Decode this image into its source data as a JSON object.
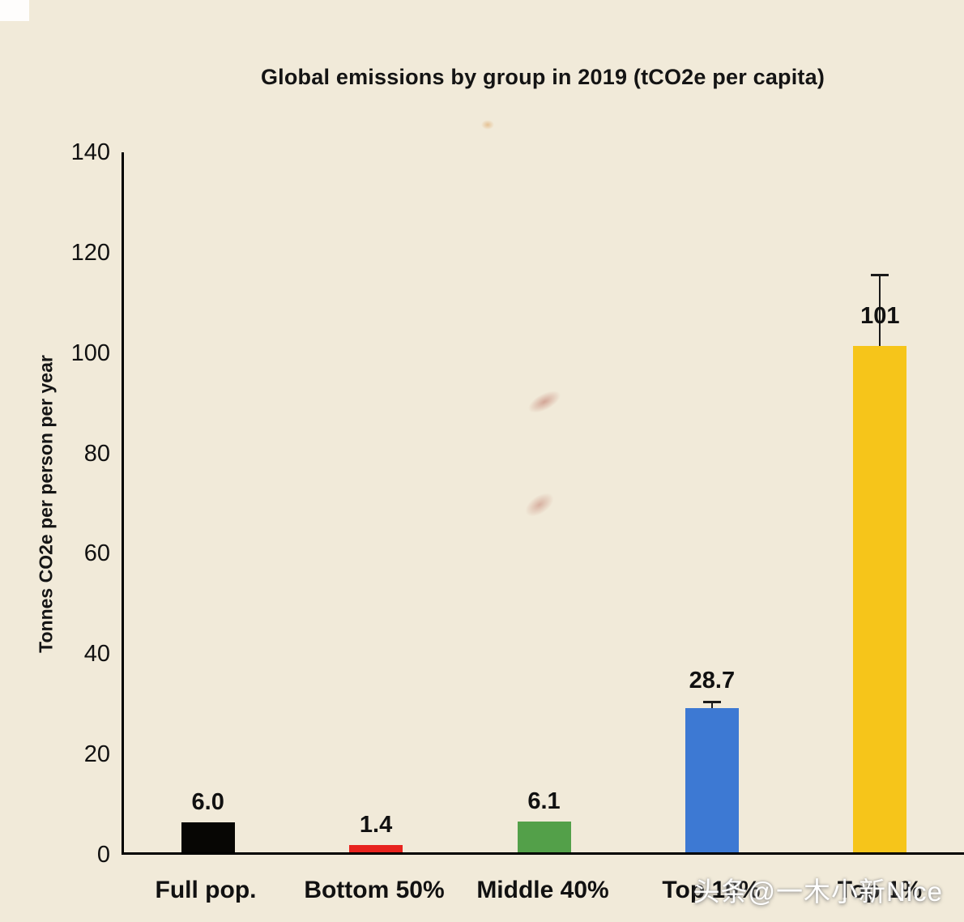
{
  "page": {
    "background_color": "#f1ead9"
  },
  "watermark": "头条@一木小新Nice",
  "chart_data": {
    "type": "bar",
    "title": "Global emissions by group in 2019 (tCO2e per capita)",
    "xlabel": "",
    "ylabel": "Tonnes CO2e per person per year",
    "ylim": [
      0,
      140
    ],
    "yticks": [
      0,
      20,
      40,
      60,
      80,
      100,
      120,
      140
    ],
    "grid": false,
    "legend": false,
    "categories": [
      "Full pop.",
      "Bottom 50%",
      "Middle 40%",
      "Top 10%",
      "Top 1%"
    ],
    "values": [
      6.0,
      1.4,
      6.1,
      28.7,
      101
    ],
    "value_labels": [
      "6.0",
      "1.4",
      "6.1",
      "28.7",
      "101"
    ],
    "bar_colors": [
      "#070604",
      "#e8231e",
      "#53a049",
      "#3d79d3",
      "#f6c51a"
    ],
    "error_upper": [
      0,
      0,
      0,
      1.5,
      14.3
    ],
    "error_bar_color": "#1a1a1a"
  }
}
